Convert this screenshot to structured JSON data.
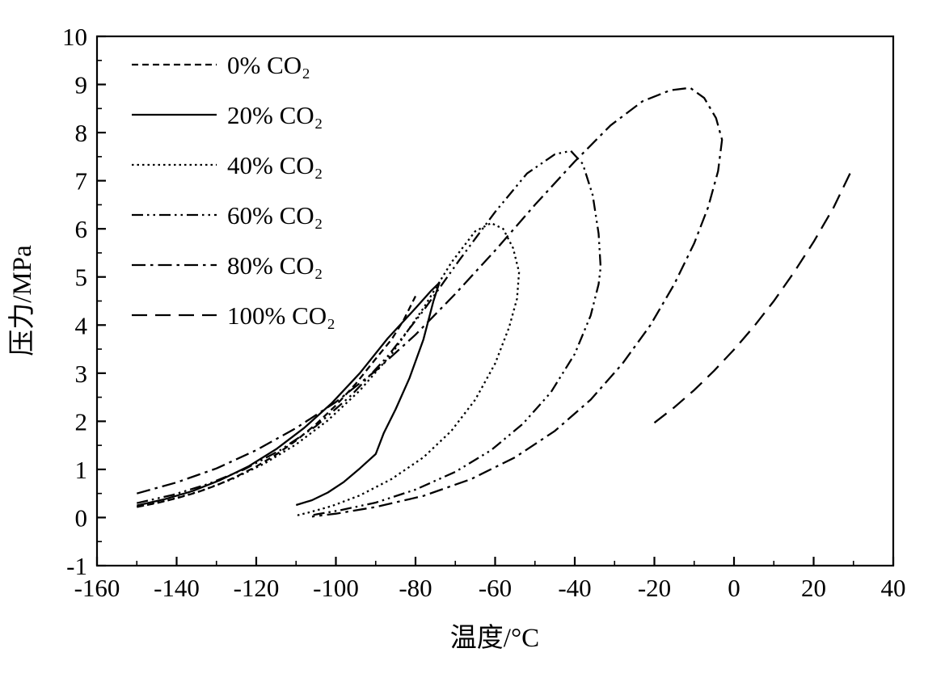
{
  "chart_data": {
    "type": "line",
    "title": "",
    "xlabel": "温度/°C",
    "ylabel": "压力/MPa",
    "xlim": [
      -160,
      40
    ],
    "ylim": [
      -1,
      10
    ],
    "x_ticks": [
      -160,
      -140,
      -120,
      -100,
      -80,
      -60,
      -40,
      -20,
      0,
      20,
      40
    ],
    "y_ticks": [
      -1,
      0,
      1,
      2,
      3,
      4,
      5,
      6,
      7,
      8,
      9,
      10
    ],
    "x_minor_step": 10,
    "y_minor_step": 0.5,
    "grid": false,
    "legend_position": "top-left",
    "line_color": "#000000",
    "background_color": "#ffffff",
    "series": [
      {
        "name": "0% CO₂",
        "dash": "8 5",
        "points": [
          [
            -150,
            0.22
          ],
          [
            -145,
            0.3
          ],
          [
            -140,
            0.4
          ],
          [
            -135,
            0.52
          ],
          [
            -130,
            0.67
          ],
          [
            -125,
            0.85
          ],
          [
            -120,
            1.06
          ],
          [
            -115,
            1.31
          ],
          [
            -110,
            1.6
          ],
          [
            -105,
            1.94
          ],
          [
            -100,
            2.33
          ],
          [
            -95,
            2.78
          ],
          [
            -90,
            3.3
          ],
          [
            -86,
            3.7
          ],
          [
            -83,
            4.1
          ],
          [
            -80,
            4.6
          ]
        ]
      },
      {
        "name": "20% CO₂",
        "dash": "",
        "points": [
          [
            -150,
            0.25
          ],
          [
            -143,
            0.38
          ],
          [
            -136,
            0.55
          ],
          [
            -129,
            0.78
          ],
          [
            -122,
            1.06
          ],
          [
            -115,
            1.42
          ],
          [
            -108,
            1.86
          ],
          [
            -101,
            2.38
          ],
          [
            -94,
            3.0
          ],
          [
            -87,
            3.72
          ],
          [
            -80,
            4.35
          ],
          [
            -76,
            4.72
          ],
          [
            -74,
            4.88
          ],
          [
            -75.5,
            4.5
          ],
          [
            -78,
            3.7
          ],
          [
            -81.5,
            2.9
          ],
          [
            -85,
            2.25
          ],
          [
            -88,
            1.75
          ],
          [
            -90,
            1.32
          ],
          [
            -94,
            1.02
          ],
          [
            -98,
            0.74
          ],
          [
            -102,
            0.52
          ],
          [
            -106,
            0.36
          ],
          [
            -110,
            0.26
          ]
        ]
      },
      {
        "name": "40% CO₂",
        "dash": "2.5 4",
        "points": [
          [
            -150,
            0.22
          ],
          [
            -142,
            0.36
          ],
          [
            -134,
            0.55
          ],
          [
            -126,
            0.8
          ],
          [
            -118,
            1.12
          ],
          [
            -110,
            1.52
          ],
          [
            -102,
            2.02
          ],
          [
            -94,
            2.64
          ],
          [
            -86,
            3.4
          ],
          [
            -78,
            4.35
          ],
          [
            -71,
            5.3
          ],
          [
            -65,
            5.95
          ],
          [
            -61,
            6.12
          ],
          [
            -58,
            6.0
          ],
          [
            -55.5,
            5.6
          ],
          [
            -54,
            5.1
          ],
          [
            -54.5,
            4.55
          ],
          [
            -56.5,
            3.95
          ],
          [
            -60,
            3.2
          ],
          [
            -65,
            2.45
          ],
          [
            -71,
            1.8
          ],
          [
            -78,
            1.25
          ],
          [
            -86,
            0.8
          ],
          [
            -94,
            0.46
          ],
          [
            -101,
            0.24
          ],
          [
            -107,
            0.1
          ],
          [
            -110,
            0.04
          ]
        ]
      },
      {
        "name": "60% CO₂",
        "dash": "14 5 2.5 5 2.5 5",
        "points": [
          [
            -150,
            0.3
          ],
          [
            -141,
            0.47
          ],
          [
            -132,
            0.7
          ],
          [
            -123,
            1.0
          ],
          [
            -114,
            1.4
          ],
          [
            -105,
            1.9
          ],
          [
            -96,
            2.55
          ],
          [
            -87,
            3.35
          ],
          [
            -78,
            4.3
          ],
          [
            -69,
            5.35
          ],
          [
            -60,
            6.35
          ],
          [
            -52,
            7.15
          ],
          [
            -45,
            7.55
          ],
          [
            -41,
            7.62
          ],
          [
            -38,
            7.35
          ],
          [
            -35.5,
            6.7
          ],
          [
            -34,
            5.9
          ],
          [
            -33.5,
            5.2
          ],
          [
            -34,
            4.85
          ],
          [
            -36,
            4.2
          ],
          [
            -40,
            3.4
          ],
          [
            -46,
            2.6
          ],
          [
            -53,
            1.95
          ],
          [
            -61,
            1.4
          ],
          [
            -70,
            0.95
          ],
          [
            -80,
            0.58
          ],
          [
            -90,
            0.31
          ],
          [
            -99,
            0.15
          ],
          [
            -106,
            0.05
          ]
        ]
      },
      {
        "name": "80% CO₂",
        "dash": "17 6 3.5 6",
        "points": [
          [
            -150,
            0.5
          ],
          [
            -140,
            0.73
          ],
          [
            -130,
            1.02
          ],
          [
            -120,
            1.4
          ],
          [
            -110,
            1.86
          ],
          [
            -100,
            2.4
          ],
          [
            -90,
            3.05
          ],
          [
            -80,
            3.8
          ],
          [
            -70,
            4.65
          ],
          [
            -60,
            5.55
          ],
          [
            -50,
            6.5
          ],
          [
            -40,
            7.4
          ],
          [
            -31,
            8.15
          ],
          [
            -23,
            8.65
          ],
          [
            -16,
            8.88
          ],
          [
            -11,
            8.93
          ],
          [
            -7.5,
            8.72
          ],
          [
            -4.5,
            8.3
          ],
          [
            -3,
            7.85
          ],
          [
            -4,
            7.2
          ],
          [
            -6.5,
            6.45
          ],
          [
            -10,
            5.7
          ],
          [
            -15,
            4.85
          ],
          [
            -21,
            4.0
          ],
          [
            -28,
            3.2
          ],
          [
            -36,
            2.45
          ],
          [
            -45,
            1.8
          ],
          [
            -55,
            1.25
          ],
          [
            -66,
            0.8
          ],
          [
            -78,
            0.45
          ],
          [
            -90,
            0.22
          ],
          [
            -100,
            0.08
          ],
          [
            -106,
            0.02
          ]
        ]
      },
      {
        "name": "100% CO₂",
        "dash": "19 10",
        "points": [
          [
            -20,
            1.97
          ],
          [
            -15,
            2.29
          ],
          [
            -10,
            2.65
          ],
          [
            -5,
            3.05
          ],
          [
            0,
            3.49
          ],
          [
            5,
            3.97
          ],
          [
            10,
            4.5
          ],
          [
            15,
            5.09
          ],
          [
            20,
            5.73
          ],
          [
            25,
            6.44
          ],
          [
            30,
            7.3
          ]
        ]
      }
    ]
  }
}
